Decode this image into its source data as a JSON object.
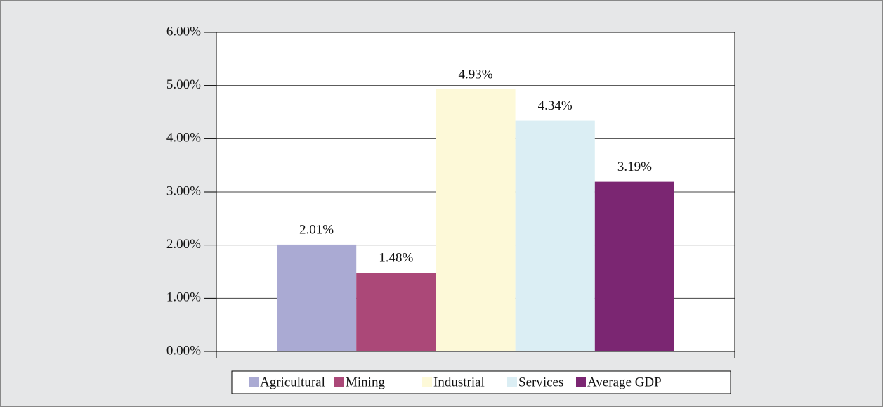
{
  "chart_data": {
    "type": "bar",
    "series": [
      {
        "name": "Agricultural",
        "color": "#aaaad3",
        "values": [
          2.01
        ],
        "value_labels": [
          "2.01%"
        ]
      },
      {
        "name": "Mining",
        "color": "#ab4878",
        "values": [
          1.48
        ],
        "value_labels": [
          "1.48%"
        ]
      },
      {
        "name": "Industrial",
        "color": "#fdf9d8",
        "values": [
          4.93
        ],
        "value_labels": [
          "4.93%"
        ]
      },
      {
        "name": "Services",
        "color": "#dbeef4",
        "values": [
          4.34
        ],
        "value_labels": [
          "4.34%"
        ]
      },
      {
        "name": "Average GDP",
        "color": "#7b2672",
        "values": [
          3.19
        ],
        "value_labels": [
          "3.19%"
        ]
      }
    ],
    "ylim": [
      0,
      6
    ],
    "yticks": [
      {
        "value": 0,
        "label": "0.00%"
      },
      {
        "value": 1,
        "label": "1.00%"
      },
      {
        "value": 2,
        "label": "2.00%"
      },
      {
        "value": 3,
        "label": "3.00%"
      },
      {
        "value": 4,
        "label": "4.00%"
      },
      {
        "value": 5,
        "label": "5.00%"
      },
      {
        "value": 6,
        "label": "6.00%"
      }
    ],
    "grid": true,
    "legend": "bottom"
  }
}
